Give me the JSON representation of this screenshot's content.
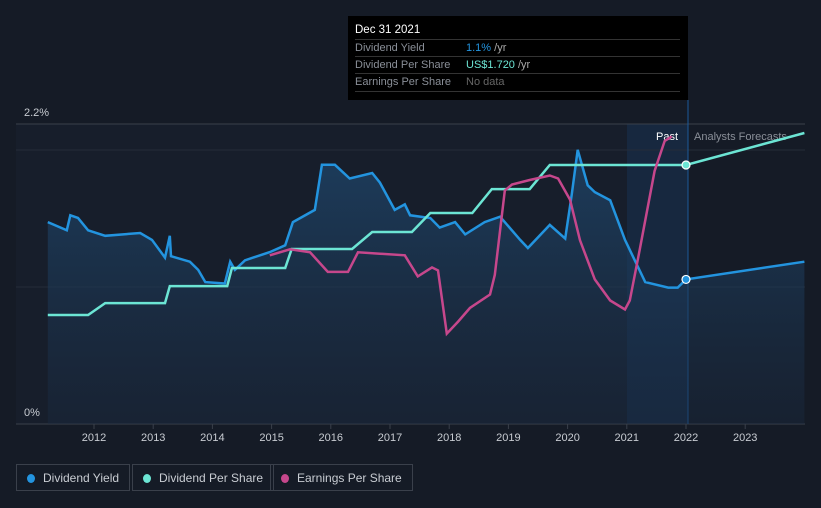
{
  "tooltip": {
    "date": "Dec 31 2021",
    "rows": [
      {
        "label": "Dividend Yield",
        "value": "1.1%",
        "unit": "/yr"
      },
      {
        "label": "Dividend Per Share",
        "value": "US$1.720",
        "unit": "/yr"
      },
      {
        "label": "Earnings Per Share",
        "value": "No data",
        "unit": ""
      }
    ]
  },
  "colors": {
    "yield": "#2394df",
    "dps": "#6ce5d4",
    "eps": "#c6478c",
    "bg": "#151b26"
  },
  "chart_data": {
    "type": "line",
    "title": "",
    "ylabel_ticks": [
      "2.2%",
      "0%"
    ],
    "ylim": [
      0,
      2.2
    ],
    "xlim": [
      2011,
      2024
    ],
    "x_ticks": [
      "2012",
      "2013",
      "2014",
      "2015",
      "2016",
      "2017",
      "2018",
      "2019",
      "2020",
      "2021",
      "2022",
      "2023"
    ],
    "region_labels": {
      "past": "Past",
      "forecast": "Analysts Forecasts"
    },
    "legend": [
      "Dividend Yield",
      "Dividend Per Share",
      "Earnings Per Share"
    ],
    "series": [
      {
        "name": "Dividend Yield",
        "unit": "%",
        "points": [
          [
            2011.22,
            1.48
          ],
          [
            2011.54,
            1.42
          ],
          [
            2011.6,
            1.53
          ],
          [
            2011.73,
            1.51
          ],
          [
            2011.9,
            1.42
          ],
          [
            2012.19,
            1.38
          ],
          [
            2012.78,
            1.4
          ],
          [
            2012.98,
            1.35
          ],
          [
            2013.2,
            1.22
          ],
          [
            2013.28,
            1.38
          ],
          [
            2013.3,
            1.23
          ],
          [
            2013.62,
            1.19
          ],
          [
            2013.76,
            1.13
          ],
          [
            2013.88,
            1.04
          ],
          [
            2014.21,
            1.03
          ],
          [
            2014.3,
            1.19
          ],
          [
            2014.38,
            1.13
          ],
          [
            2014.55,
            1.2
          ],
          [
            2014.97,
            1.26
          ],
          [
            2015.23,
            1.31
          ],
          [
            2015.36,
            1.48
          ],
          [
            2015.73,
            1.57
          ],
          [
            2015.85,
            1.9
          ],
          [
            2016.07,
            1.9
          ],
          [
            2016.32,
            1.8
          ],
          [
            2016.7,
            1.84
          ],
          [
            2016.83,
            1.77
          ],
          [
            2017.08,
            1.57
          ],
          [
            2017.25,
            1.61
          ],
          [
            2017.34,
            1.53
          ],
          [
            2017.68,
            1.51
          ],
          [
            2017.84,
            1.44
          ],
          [
            2018.1,
            1.48
          ],
          [
            2018.27,
            1.39
          ],
          [
            2018.6,
            1.48
          ],
          [
            2018.86,
            1.52
          ],
          [
            2019.2,
            1.35
          ],
          [
            2019.33,
            1.29
          ],
          [
            2019.7,
            1.46
          ],
          [
            2019.96,
            1.36
          ],
          [
            2020.07,
            1.68
          ],
          [
            2020.17,
            2.01
          ],
          [
            2020.34,
            1.75
          ],
          [
            2020.46,
            1.7
          ],
          [
            2020.72,
            1.64
          ],
          [
            2020.97,
            1.35
          ],
          [
            2021.31,
            1.04
          ],
          [
            2021.7,
            1.0
          ],
          [
            2021.86,
            1.0
          ],
          [
            2022.0,
            1.06
          ],
          [
            2024.0,
            1.19
          ]
        ]
      },
      {
        "name": "Dividend Per Share",
        "unit": "US$",
        "points": [
          [
            2011.22,
            0.724
          ],
          [
            2011.9,
            0.724
          ],
          [
            2012.19,
            0.803
          ],
          [
            2013.2,
            0.803
          ],
          [
            2013.28,
            0.916
          ],
          [
            2014.25,
            0.916
          ],
          [
            2014.33,
            1.036
          ],
          [
            2015.23,
            1.036
          ],
          [
            2015.34,
            1.162
          ],
          [
            2016.36,
            1.162
          ],
          [
            2016.7,
            1.275
          ],
          [
            2017.37,
            1.275
          ],
          [
            2017.68,
            1.401
          ],
          [
            2018.39,
            1.401
          ],
          [
            2018.72,
            1.56
          ],
          [
            2019.36,
            1.56
          ],
          [
            2019.7,
            1.72
          ],
          [
            2022.0,
            1.72
          ],
          [
            2024.0,
            1.932
          ]
        ]
      },
      {
        "name": "Earnings Per Share",
        "unit": "US$",
        "points": [
          [
            2014.97,
            1.12
          ],
          [
            2015.31,
            1.16
          ],
          [
            2015.65,
            1.14
          ],
          [
            2015.95,
            1.01
          ],
          [
            2016.29,
            1.01
          ],
          [
            2016.46,
            1.14
          ],
          [
            2017.25,
            1.12
          ],
          [
            2017.47,
            0.98
          ],
          [
            2017.71,
            1.04
          ],
          [
            2017.81,
            1.02
          ],
          [
            2017.96,
            0.6
          ],
          [
            2018.15,
            0.68
          ],
          [
            2018.35,
            0.77
          ],
          [
            2018.69,
            0.86
          ],
          [
            2018.77,
            0.99
          ],
          [
            2018.94,
            1.55
          ],
          [
            2019.06,
            1.59
          ],
          [
            2019.36,
            1.62
          ],
          [
            2019.7,
            1.65
          ],
          [
            2019.84,
            1.63
          ],
          [
            2020.04,
            1.49
          ],
          [
            2020.21,
            1.22
          ],
          [
            2020.46,
            0.96
          ],
          [
            2020.72,
            0.82
          ],
          [
            2020.97,
            0.76
          ],
          [
            2021.05,
            0.82
          ],
          [
            2021.22,
            1.16
          ],
          [
            2021.47,
            1.68
          ],
          [
            2021.64,
            1.88
          ],
          [
            2021.76,
            1.91
          ]
        ]
      }
    ]
  }
}
